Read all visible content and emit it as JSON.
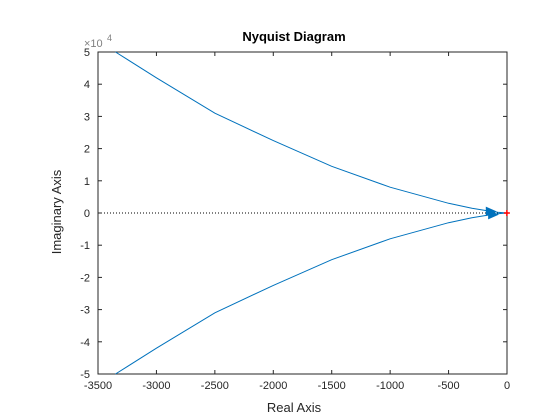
{
  "chart_data": {
    "type": "line",
    "title": "Nyquist Diagram",
    "xlabel": "Real Axis",
    "ylabel": "Imaginary Axis",
    "xlim": [
      -3500,
      0
    ],
    "ylim": [
      -5,
      5
    ],
    "y_scale_label": "×10",
    "y_scale_exponent": "4",
    "xticks": [
      -3500,
      -3000,
      -2500,
      -2000,
      -1500,
      -1000,
      -500,
      0
    ],
    "xtick_labels": [
      "-3500",
      "-3000",
      "-2500",
      "-2000",
      "-1500",
      "-1000",
      "-500",
      "0"
    ],
    "yticks": [
      -5,
      -4,
      -3,
      -2,
      -1,
      0,
      1,
      2,
      3,
      4,
      5
    ],
    "ytick_labels": [
      "-5",
      "-4",
      "-3",
      "-2",
      "-1",
      "0",
      "1",
      "2",
      "3",
      "4",
      "5"
    ],
    "grid": false,
    "zero_reference_line": true,
    "critical_point": [
      -1,
      0
    ],
    "series": [
      {
        "color": "#0072BD",
        "x": [
          -3350,
          -3000,
          -2500,
          -2000,
          -1500,
          -1000,
          -500,
          -300,
          -150,
          -80,
          -30,
          -10,
          0
        ],
        "y": [
          5.0,
          4.2,
          3.1,
          2.25,
          1.45,
          0.8,
          0.3,
          0.15,
          0.06,
          0.025,
          0.008,
          0.002,
          0
        ]
      },
      {
        "color": "#0072BD",
        "x": [
          -3350,
          -3000,
          -2500,
          -2000,
          -1500,
          -1000,
          -500,
          -300,
          -150,
          -80,
          -30,
          -10,
          0
        ],
        "y": [
          -5.0,
          -4.2,
          -3.1,
          -2.25,
          -1.45,
          -0.8,
          -0.3,
          -0.15,
          -0.06,
          -0.025,
          -0.008,
          -0.002,
          0
        ]
      }
    ],
    "arrows": [
      {
        "x": -160,
        "y": 0.05
      },
      {
        "x": -140,
        "y": -0.05
      }
    ],
    "colors": {
      "line": "#0072BD",
      "critical_point": "#FF0000",
      "axes": "#262626",
      "reference_line": "#000000"
    }
  }
}
